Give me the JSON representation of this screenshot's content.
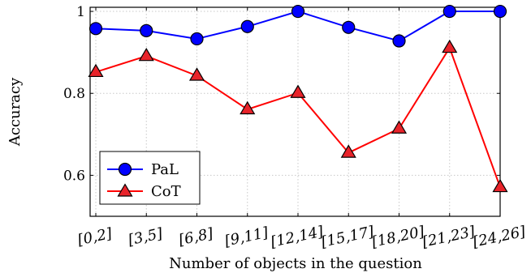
{
  "chart_data": {
    "type": "line",
    "categories": [
      "[0,2]",
      "[3,5]",
      "[6,8]",
      "[9,11]",
      "[12,14]",
      "[15,17]",
      "[18,20]",
      "[21,23]",
      "[24,26]"
    ],
    "series": [
      {
        "name": "PaL",
        "values": [
          0.958,
          0.953,
          0.933,
          0.963,
          1.0,
          0.961,
          0.928,
          1.0,
          1.0
        ],
        "color": "#0000ff",
        "marker": "circle",
        "marker_fill": "#0000ff"
      },
      {
        "name": "CoT",
        "values": [
          0.852,
          0.891,
          0.843,
          0.761,
          0.801,
          0.655,
          0.714,
          0.911,
          0.571
        ],
        "color": "#ff0000",
        "marker": "triangle",
        "marker_fill": "#e8232a"
      }
    ],
    "xlabel": "Number of objects in the question",
    "ylabel": "Accuracy",
    "ylim": [
      0.5,
      1.01
    ],
    "yticks": [
      0.6,
      0.8,
      1
    ],
    "ytick_labels": [
      "0.6",
      "0.8",
      "1"
    ],
    "grid": true,
    "legend_position": "bottom-left"
  }
}
